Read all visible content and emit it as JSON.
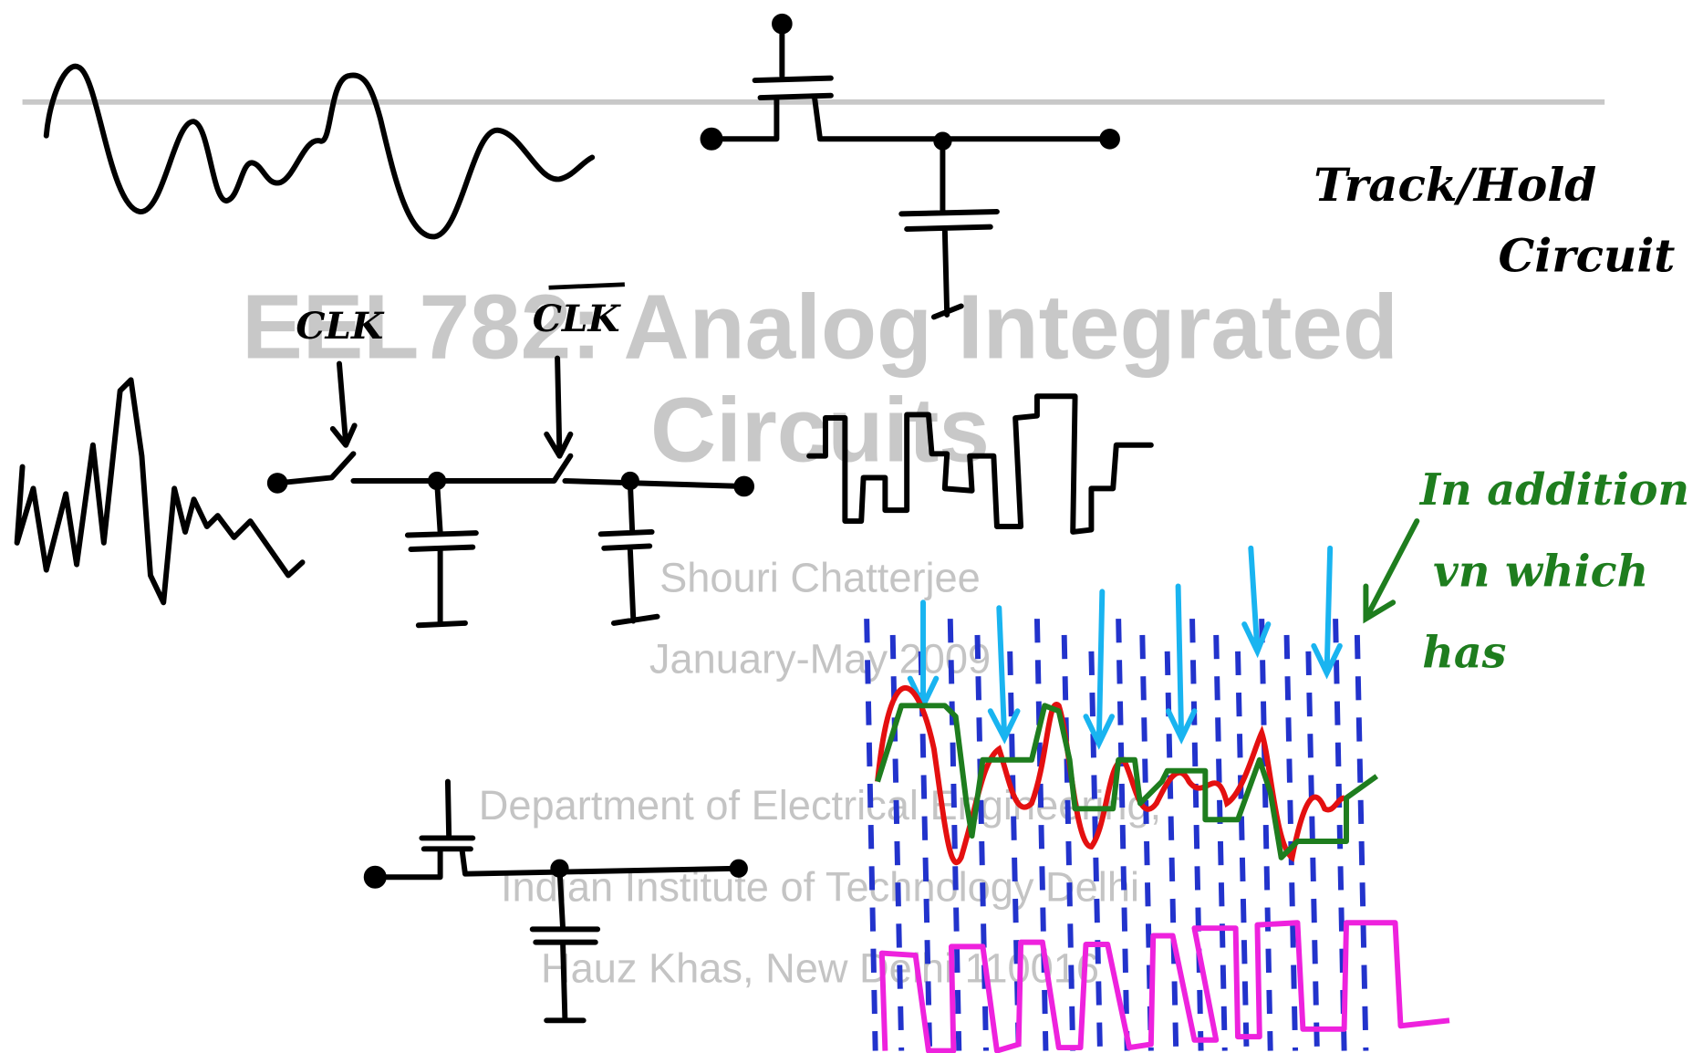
{
  "slide": {
    "title_lines": [
      "EEL782: Analog Integrated",
      "Circuits"
    ],
    "author": "Shouri Chatterjee",
    "date": "January-May 2009",
    "affiliation": [
      "Department of Electrical Engineering,",
      "Indian Institute of Technology Delhi",
      "Hauz Khas, New Delhi 110016"
    ]
  },
  "annotations": {
    "track_hold": [
      "Track/Hold",
      "Circuit"
    ],
    "clk": "CLK",
    "clk_bar": "CLK",
    "note_lines": [
      "In addition",
      "vn which",
      "has"
    ]
  }
}
